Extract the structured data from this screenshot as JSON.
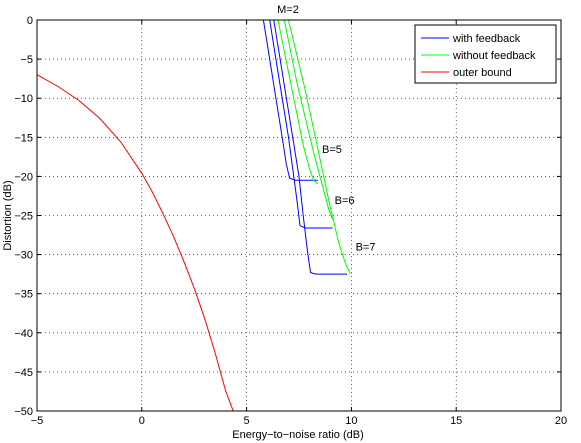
{
  "chart_data": {
    "type": "line",
    "title": "M=2",
    "xlabel": "Energy−to−noise ratio (dB)",
    "ylabel": "Distortion (dB)",
    "xlim": [
      -5,
      20
    ],
    "ylim": [
      -50,
      0
    ],
    "xticks": [
      -5,
      0,
      5,
      10,
      15,
      20
    ],
    "yticks": [
      0,
      -5,
      -10,
      -15,
      -20,
      -25,
      -30,
      -35,
      -40,
      -45,
      -50
    ],
    "xtick_labels": [
      "−5",
      "0",
      "5",
      "10",
      "15",
      "20"
    ],
    "ytick_labels": [
      "0",
      "−5",
      "−10",
      "−15",
      "−20",
      "−25",
      "−30",
      "−35",
      "−40",
      "−45",
      "−50"
    ],
    "grid": true,
    "legend_position": "top-right",
    "legend": [
      {
        "label": "with feedback",
        "color": "#0000ff"
      },
      {
        "label": "without feedback",
        "color": "#00ff00"
      },
      {
        "label": "outer bound",
        "color": "#ff0000"
      }
    ],
    "annotations": [
      {
        "text": "B=5",
        "x": 8.6,
        "y": -17
      },
      {
        "text": "B=6",
        "x": 9.2,
        "y": -23.5
      },
      {
        "text": "B=7",
        "x": 10.2,
        "y": -29.5
      }
    ],
    "series": [
      {
        "group": "outer bound",
        "color": "#ff0000",
        "x": [
          -5,
          -4,
          -3,
          -2,
          -1,
          0,
          0.5,
          1,
          1.5,
          2,
          2.5,
          3,
          3.5,
          4,
          4.5
        ],
        "y": [
          -7,
          -8.5,
          -10.3,
          -12.6,
          -15.6,
          -19.6,
          -22,
          -24.7,
          -27.6,
          -30.8,
          -34.3,
          -38.2,
          -42.6,
          -47.4,
          -51
        ]
      },
      {
        "group": "with feedback",
        "color": "#0000ff",
        "x": [
          5.8,
          6.1,
          6.4,
          6.7,
          6.9,
          7.05,
          7.3,
          7.8,
          8.4
        ],
        "y": [
          0,
          -5,
          -10,
          -15,
          -18.5,
          -20.2,
          -20.5,
          -20.5,
          -20.5
        ]
      },
      {
        "group": "with feedback",
        "color": "#0000ff",
        "x": [
          6.1,
          6.4,
          6.7,
          7.0,
          7.2,
          7.4,
          7.55,
          7.8,
          8.4,
          9.1
        ],
        "y": [
          0,
          -5,
          -10,
          -15,
          -19,
          -23,
          -26.3,
          -26.6,
          -26.6,
          -26.6
        ]
      },
      {
        "group": "with feedback",
        "color": "#0000ff",
        "x": [
          6.3,
          6.6,
          6.9,
          7.2,
          7.5,
          7.7,
          7.9,
          8.05,
          8.3,
          9,
          9.8
        ],
        "y": [
          0,
          -5,
          -10,
          -15,
          -20,
          -25,
          -29.5,
          -32.3,
          -32.5,
          -32.5,
          -32.5
        ]
      },
      {
        "group": "without feedback",
        "color": "#00ff00",
        "x": [
          6.5,
          6.8,
          7.1,
          7.4,
          7.7,
          8.0,
          8.2,
          8.4
        ],
        "y": [
          0,
          -4,
          -8,
          -12,
          -16,
          -19,
          -20.5,
          -21
        ]
      },
      {
        "group": "without feedback",
        "color": "#00ff00",
        "x": [
          6.8,
          7.1,
          7.4,
          7.8,
          8.2,
          8.6,
          8.9,
          9.1
        ],
        "y": [
          0,
          -4,
          -8,
          -12.5,
          -17,
          -21,
          -24,
          -25.5
        ]
      },
      {
        "group": "without feedback",
        "color": "#00ff00",
        "x": [
          7.0,
          7.4,
          7.8,
          8.2,
          8.6,
          9.0,
          9.4,
          9.7,
          9.95
        ],
        "y": [
          0,
          -4.5,
          -9,
          -14,
          -19,
          -24,
          -28.5,
          -31,
          -32.5
        ]
      }
    ]
  }
}
